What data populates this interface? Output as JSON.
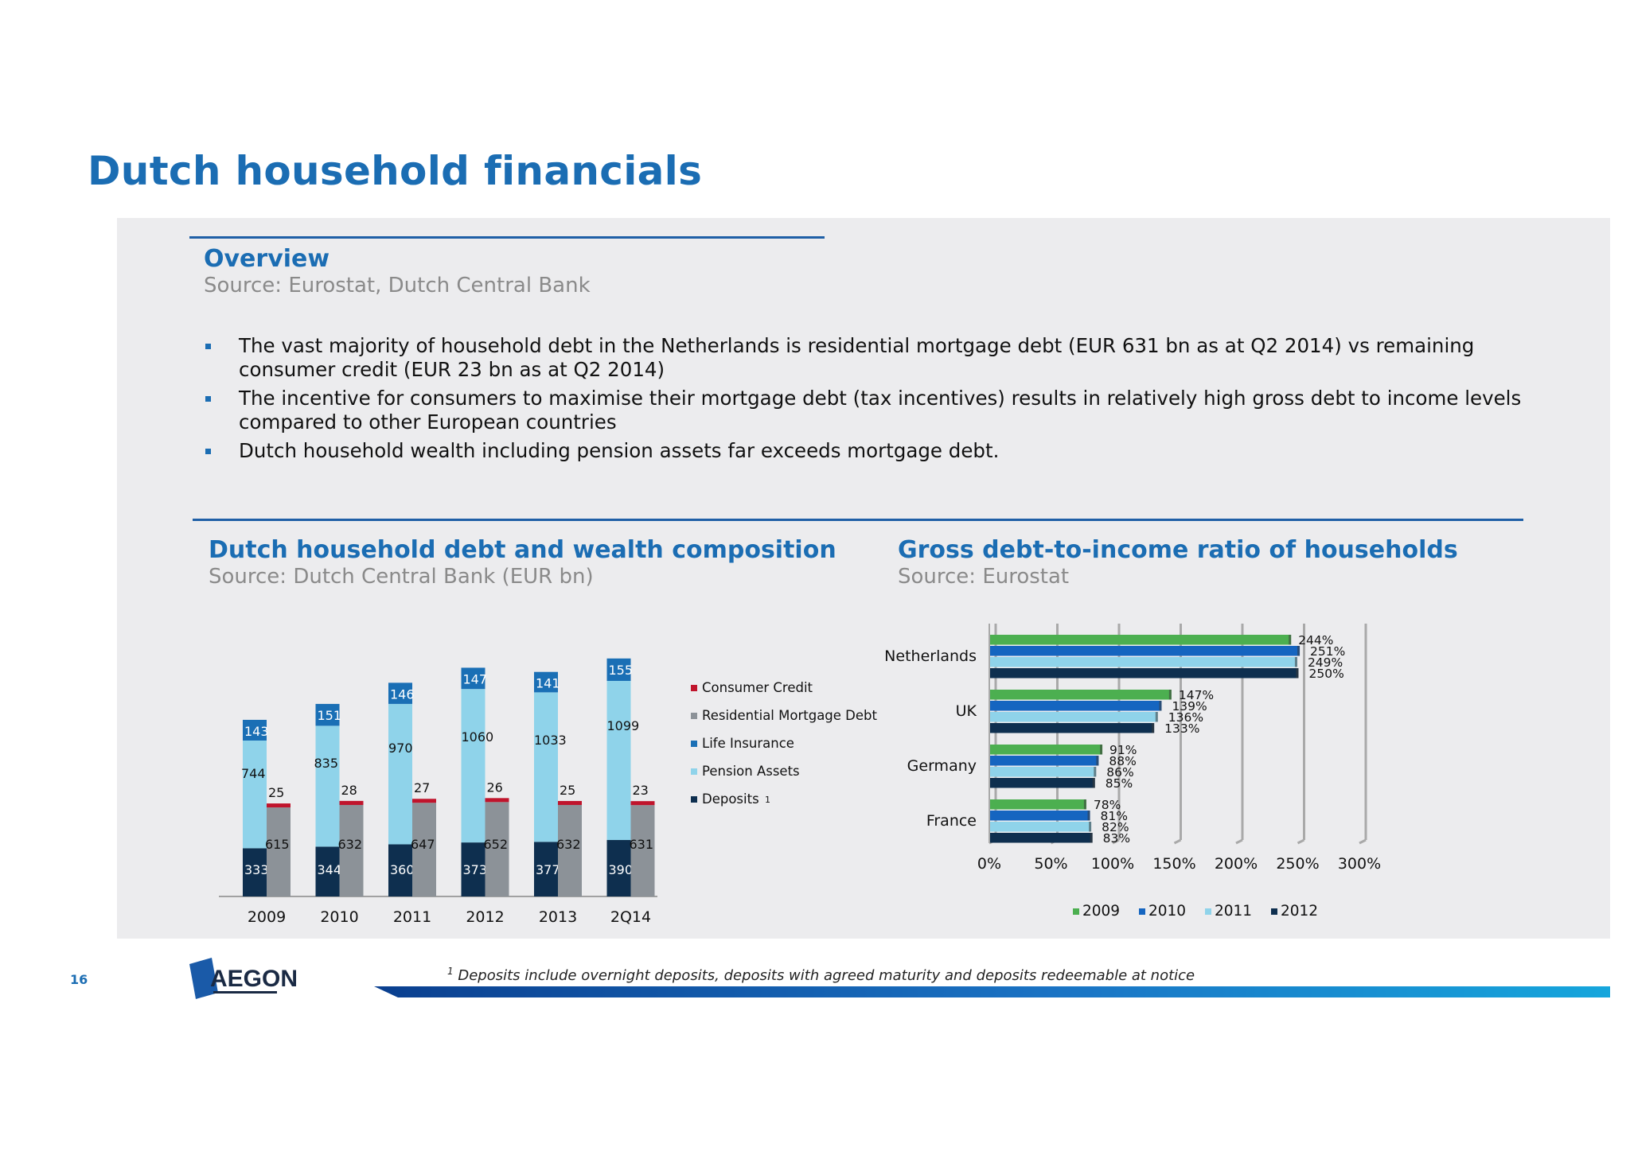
{
  "page": {
    "title": "Dutch household financials",
    "page_number": "16",
    "logo_text": "AEGON",
    "footnote_marker": "1",
    "footnote": "Deposits include overnight deposits, deposits with agreed maturity and deposits redeemable at notice"
  },
  "overview": {
    "title": "Overview",
    "source": "Source: Eurostat, Dutch Central Bank",
    "bullets": [
      "The vast majority of household debt in the Netherlands is residential mortgage debt (EUR 631 bn as at Q2 2014) vs remaining consumer credit (EUR 23 bn as at Q2 2014)",
      "The incentive for consumers to maximise their mortgage debt (tax incentives) results in relatively high gross debt to income levels compared to other European countries",
      "Dutch household wealth including pension assets far exceeds mortgage debt."
    ]
  },
  "left_section": {
    "title": "Dutch household debt and wealth composition",
    "source": "Source: Dutch Central Bank (EUR bn)"
  },
  "right_section": {
    "title": "Gross debt-to-income ratio of households",
    "source": "Source: Eurostat"
  },
  "colors": {
    "consumer_credit": "#c0142c",
    "mortgage": "#8c9298",
    "life_insurance": "#1a6fb5",
    "pension": "#8fd3ea",
    "deposits": "#0e2f4f",
    "y2009": "#4caf50",
    "y2010": "#1565c0",
    "y2011": "#8fd3ea",
    "y2012": "#0e2f4f",
    "title_blue": "#1b6db3"
  },
  "chart_data": [
    {
      "type": "bar",
      "stacked": true,
      "categories": [
        "2009",
        "2010",
        "2011",
        "2012",
        "2013",
        "2Q14"
      ],
      "wealth_stack": [
        {
          "name": "Deposits",
          "footnote": "1",
          "values": [
            333,
            344,
            360,
            373,
            377,
            390
          ]
        },
        {
          "name": "Pension Assets",
          "values": [
            744,
            835,
            970,
            1060,
            1033,
            1099
          ]
        },
        {
          "name": "Life Insurance",
          "values": [
            143,
            151,
            146,
            147,
            141,
            155
          ]
        }
      ],
      "debt_stack": [
        {
          "name": "Residential Mortgage Debt",
          "values": [
            615,
            632,
            647,
            652,
            632,
            631
          ]
        },
        {
          "name": "Consumer Credit",
          "values": [
            25,
            28,
            27,
            26,
            25,
            23
          ]
        }
      ],
      "legend": [
        "Consumer Credit",
        "Residential Mortgage Debt",
        "Life Insurance",
        "Pension Assets",
        "Deposits"
      ],
      "legend_position": "right"
    },
    {
      "type": "bar",
      "orientation": "horizontal",
      "categories": [
        "Netherlands",
        "UK",
        "Germany",
        "France"
      ],
      "series": [
        {
          "name": "2009",
          "values": [
            244,
            147,
            91,
            78
          ]
        },
        {
          "name": "2010",
          "values": [
            251,
            139,
            88,
            81
          ]
        },
        {
          "name": "2011",
          "values": [
            249,
            136,
            86,
            82
          ]
        },
        {
          "name": "2012",
          "values": [
            250,
            133,
            85,
            83
          ]
        }
      ],
      "xlim": [
        0,
        300
      ],
      "xticks": [
        "0%",
        "50%",
        "100%",
        "150%",
        "200%",
        "250%",
        "300%"
      ],
      "value_suffix": "%",
      "legend_position": "bottom"
    }
  ]
}
